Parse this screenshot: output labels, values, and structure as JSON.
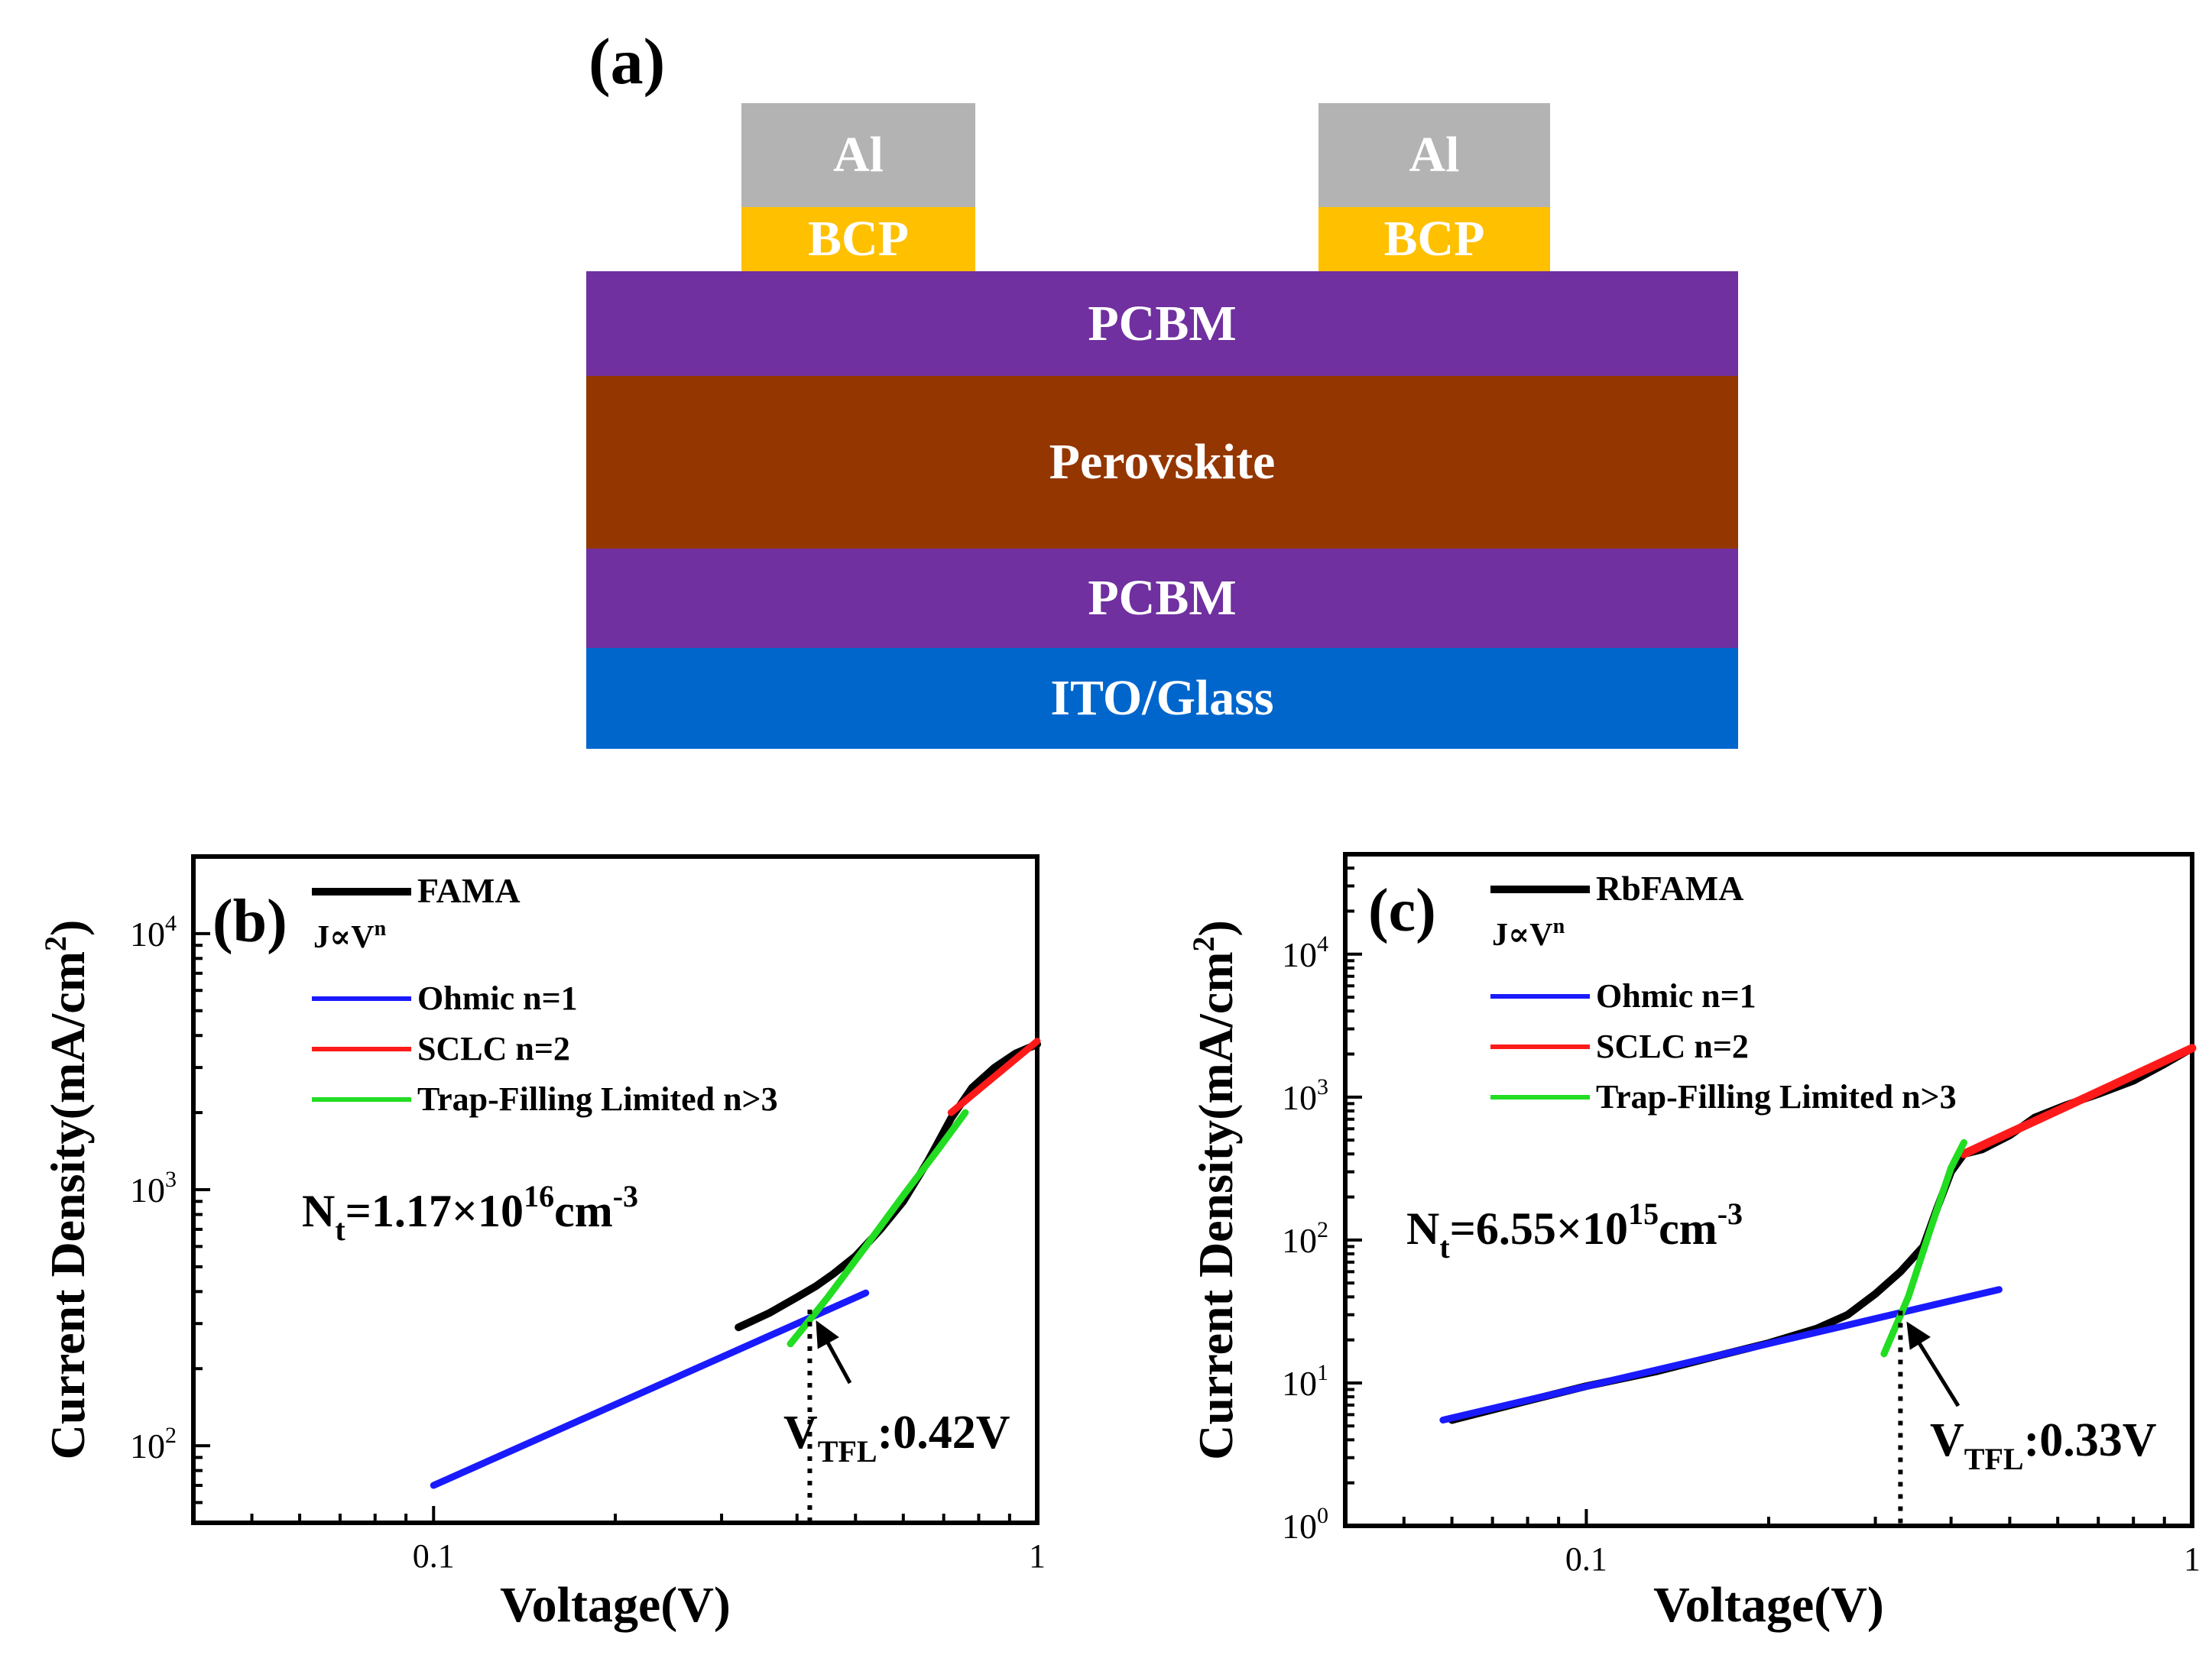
{
  "panel_a": {
    "label": "(a)",
    "layers": [
      {
        "key": "al_left",
        "text": "Al",
        "color": "#b3b3b3"
      },
      {
        "key": "bcp_left",
        "text": "BCP",
        "color": "#ffc000"
      },
      {
        "key": "al_right",
        "text": "Al",
        "color": "#b3b3b3"
      },
      {
        "key": "bcp_right",
        "text": "BCP",
        "color": "#ffc000"
      },
      {
        "key": "pcbm_top",
        "text": "PCBM",
        "color": "#7030a0"
      },
      {
        "key": "perovskite",
        "text": "Perovskite",
        "color": "#943600"
      },
      {
        "key": "pcbm_bottom",
        "text": "PCBM",
        "color": "#7030a0"
      },
      {
        "key": "ito",
        "text": "ITO/Glass",
        "color": "#0066cc"
      }
    ]
  },
  "chart_data": [
    {
      "type": "line",
      "panel": "(b)",
      "xscale": "log",
      "yscale": "log",
      "xlim": [
        0.04,
        1.0
      ],
      "ylim": [
        50,
        20000
      ],
      "xlabel": "Voltage(V)",
      "ylabel": "Current Density(mA/cm",
      "ylabel_sup": "2",
      "ylabel_close": ")",
      "xticks": [
        {
          "v": 0.1,
          "label": "0.1"
        },
        {
          "v": 1,
          "label": "1"
        }
      ],
      "yticks": [
        {
          "v": 100,
          "base": "10",
          "exp": "2"
        },
        {
          "v": 1000,
          "base": "10",
          "exp": "3"
        },
        {
          "v": 10000,
          "base": "10",
          "exp": "4"
        }
      ],
      "legend_header": "J∝V",
      "legend_header_sup": "n",
      "series": [
        {
          "name": "FAMA",
          "color": "#000000",
          "width": 10,
          "x": [
            0.32,
            0.36,
            0.4,
            0.43,
            0.46,
            0.5,
            0.55,
            0.6,
            0.66,
            0.72,
            0.78,
            0.85,
            0.92,
            1.0
          ],
          "y": [
            290,
            330,
            380,
            420,
            470,
            550,
            700,
            900,
            1300,
            1900,
            2500,
            3000,
            3400,
            3700
          ]
        },
        {
          "name": "Ohmic n=1",
          "color": "#1a1aff",
          "width": 9,
          "x": [
            0.1,
            0.52
          ],
          "y": [
            70,
            395
          ]
        },
        {
          "name": "SCLC  n=2",
          "color": "#ff1a1a",
          "width": 9,
          "x": [
            0.72,
            1.0
          ],
          "y": [
            2000,
            3800
          ]
        },
        {
          "name": "Trap-Filling Limited n>3",
          "color": "#22dd22",
          "width": 9,
          "x": [
            0.39,
            0.45,
            0.52,
            0.6,
            0.68,
            0.76
          ],
          "y": [
            250,
            380,
            600,
            950,
            1400,
            2000
          ]
        }
      ],
      "annotation_main": "N",
      "annotation_sub": "t",
      "annotation_mid": "=1.17×10",
      "annotation_sup": "16",
      "annotation_tail": "cm",
      "annotation_sup2": "-3",
      "vtfl_main": "V",
      "vtfl_sub": "TFL",
      "vtfl_tail": ":0.42V",
      "vtfl_x": 0.42,
      "vtfl_y": 340
    },
    {
      "type": "line",
      "panel": "(c)",
      "xscale": "log",
      "yscale": "log",
      "xlim": [
        0.04,
        1.0
      ],
      "ylim": [
        1,
        50000
      ],
      "xlabel": "Voltage(V)",
      "ylabel": "Current Density(mA/cm",
      "ylabel_sup": "2",
      "ylabel_close": ")",
      "xticks": [
        {
          "v": 0.1,
          "label": "0.1"
        },
        {
          "v": 1,
          "label": "1"
        }
      ],
      "yticks": [
        {
          "v": 1,
          "base": "10",
          "exp": "0"
        },
        {
          "v": 10,
          "base": "10",
          "exp": "1"
        },
        {
          "v": 100,
          "base": "10",
          "exp": "2"
        },
        {
          "v": 1000,
          "base": "10",
          "exp": "3"
        },
        {
          "v": 10000,
          "base": "10",
          "exp": "4"
        }
      ],
      "legend_header": "J∝V",
      "legend_header_sup": "n",
      "series": [
        {
          "name": "RbFAMA",
          "color": "#000000",
          "width": 10,
          "x": [
            0.06,
            0.08,
            0.1,
            0.13,
            0.16,
            0.2,
            0.24,
            0.27,
            0.3,
            0.33,
            0.36,
            0.38,
            0.4,
            0.42,
            0.45,
            0.5,
            0.55,
            0.62,
            0.7,
            0.8,
            0.9,
            1.0
          ],
          "y": [
            5.5,
            7.5,
            9.5,
            12,
            15,
            19,
            24,
            30,
            42,
            60,
            90,
            170,
            300,
            400,
            430,
            540,
            720,
            880,
            1050,
            1300,
            1700,
            2200
          ]
        },
        {
          "name": "Ohmic n=1",
          "color": "#1a1aff",
          "width": 9,
          "x": [
            0.058,
            0.48
          ],
          "y": [
            5.5,
            45
          ]
        },
        {
          "name": "SCLC  n=2",
          "color": "#ff1a1a",
          "width": 11,
          "x": [
            0.42,
            1.0
          ],
          "y": [
            400,
            2200
          ]
        },
        {
          "name": "Trap-Filling Limited n>3",
          "color": "#22dd22",
          "width": 9,
          "x": [
            0.31,
            0.34,
            0.37,
            0.4,
            0.42
          ],
          "y": [
            16,
            40,
            120,
            320,
            480
          ]
        }
      ],
      "annotation_main": "N",
      "annotation_sub": "t",
      "annotation_mid": "=6.55×10",
      "annotation_sup": "15",
      "annotation_tail": "cm",
      "annotation_sup2": "-3",
      "vtfl_main": "V",
      "vtfl_sub": "TFL",
      "vtfl_tail": ":0.33V",
      "vtfl_x": 0.33,
      "vtfl_y": 32
    }
  ]
}
